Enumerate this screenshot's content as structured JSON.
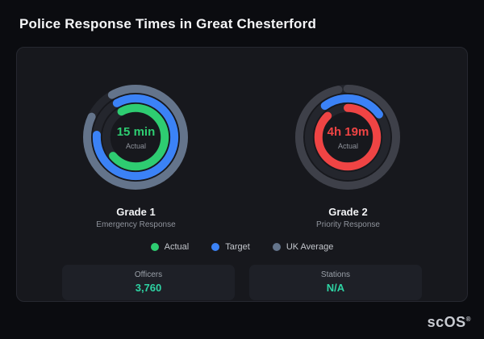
{
  "page": {
    "title": "Police Response Times in Great Chesterford",
    "watermark": "scOS",
    "watermark_mark": "®"
  },
  "chart_data": [
    {
      "type": "gauge",
      "title": "Grade 1",
      "subtitle": "Emergency Response",
      "center_value": "15 min",
      "center_value_color": "#2ecc71",
      "center_label": "Actual",
      "rings": [
        {
          "name": "UK Average",
          "color": "#64748b",
          "percent": 90,
          "start": -8
        },
        {
          "name": "Target",
          "color": "#3b82f6",
          "percent": 84,
          "start": -8
        },
        {
          "name": "Actual",
          "color": "#2ecc71",
          "percent": 72,
          "start": -8
        }
      ]
    },
    {
      "type": "gauge",
      "title": "Grade 2",
      "subtitle": "Priority Response",
      "center_value": "4h 19m",
      "center_value_color": "#ef4444",
      "center_label": "Actual",
      "rings": [
        {
          "name": "UK Average",
          "color": "#3e4049",
          "percent": 97,
          "start": 0
        },
        {
          "name": "Target",
          "color": "#3b82f6",
          "percent": 25,
          "start": -10
        },
        {
          "name": "Actual",
          "color": "#ef4444",
          "percent": 88,
          "start": 0
        }
      ]
    }
  ],
  "legend": [
    {
      "label": "Actual",
      "color": "#2ecc71"
    },
    {
      "label": "Target",
      "color": "#3b82f6"
    },
    {
      "label": "UK Average",
      "color": "#64748b"
    }
  ],
  "stats": [
    {
      "label": "Officers",
      "value": "3,760"
    },
    {
      "label": "Stations",
      "value": "N/A"
    }
  ],
  "colors": {
    "accent_value": "#2ed3a3",
    "card_background": "#17181d",
    "page_background": "#0b0c10"
  }
}
